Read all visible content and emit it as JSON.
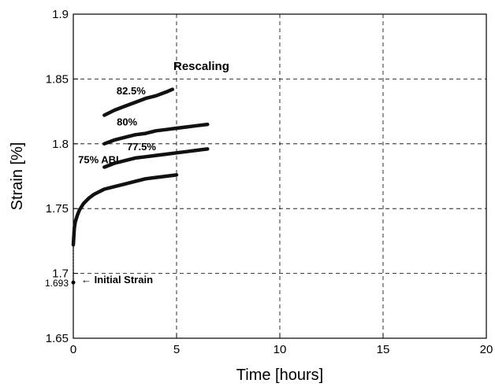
{
  "chart_data": {
    "type": "line",
    "xlabel": "Time [hours]",
    "ylabel": "Strain [%]",
    "xlim": [
      0,
      20
    ],
    "ylim": [
      1.65,
      1.9
    ],
    "xticks": [
      0,
      5,
      10,
      15,
      20
    ],
    "yticks": [
      1.65,
      1.7,
      1.75,
      1.8,
      1.85,
      1.9
    ],
    "xtick_labels": [
      "0",
      "5",
      "10",
      "15",
      "20"
    ],
    "ytick_labels": [
      "1.65",
      "1.7",
      "1.75",
      "1.8",
      "1.85",
      "1.9"
    ],
    "grid": true,
    "grid_style": "dashed",
    "extra_ytick": {
      "value": 1.693,
      "label": "1.693"
    },
    "series": [
      {
        "label": "75% ABL",
        "x": [
          0,
          0.05,
          0.1,
          0.2,
          0.3,
          0.5,
          0.75,
          1,
          1.5,
          2,
          2.5,
          3,
          3.5,
          4,
          4.5,
          5
        ],
        "y": [
          1.722,
          1.735,
          1.74,
          1.745,
          1.749,
          1.754,
          1.758,
          1.761,
          1.765,
          1.767,
          1.769,
          1.771,
          1.773,
          1.774,
          1.775,
          1.776
        ]
      },
      {
        "label": "77.5%",
        "x": [
          1.5,
          2,
          2.5,
          3,
          3.5,
          4,
          4.5,
          5,
          5.5,
          6,
          6.5
        ],
        "y": [
          1.782,
          1.785,
          1.787,
          1.789,
          1.79,
          1.791,
          1.792,
          1.793,
          1.794,
          1.795,
          1.796
        ]
      },
      {
        "label": "80%",
        "x": [
          1.5,
          2,
          2.5,
          3,
          3.5,
          4,
          4.5,
          5,
          5.5,
          6,
          6.5
        ],
        "y": [
          1.8,
          1.803,
          1.805,
          1.807,
          1.808,
          1.81,
          1.811,
          1.812,
          1.813,
          1.814,
          1.815
        ]
      },
      {
        "label": "82.5%",
        "x": [
          1.5,
          2,
          2.5,
          3,
          3.5,
          4,
          4.5,
          4.8
        ],
        "y": [
          1.822,
          1.826,
          1.829,
          1.832,
          1.835,
          1.837,
          1.84,
          1.842
        ]
      }
    ],
    "initial_point": {
      "x": 0,
      "y": 1.693,
      "label": "← Initial Strain"
    },
    "annotations": [
      {
        "text": "Rescaling",
        "x": 6.2,
        "y": 1.857
      },
      {
        "text": "82.5%",
        "x": 2.8,
        "y": 1.838
      },
      {
        "text": "80%",
        "x": 2.6,
        "y": 1.814
      },
      {
        "text": "77.5%",
        "x": 3.3,
        "y": 1.795
      },
      {
        "text": "75% ABL",
        "x": 1.3,
        "y": 1.785
      }
    ]
  }
}
